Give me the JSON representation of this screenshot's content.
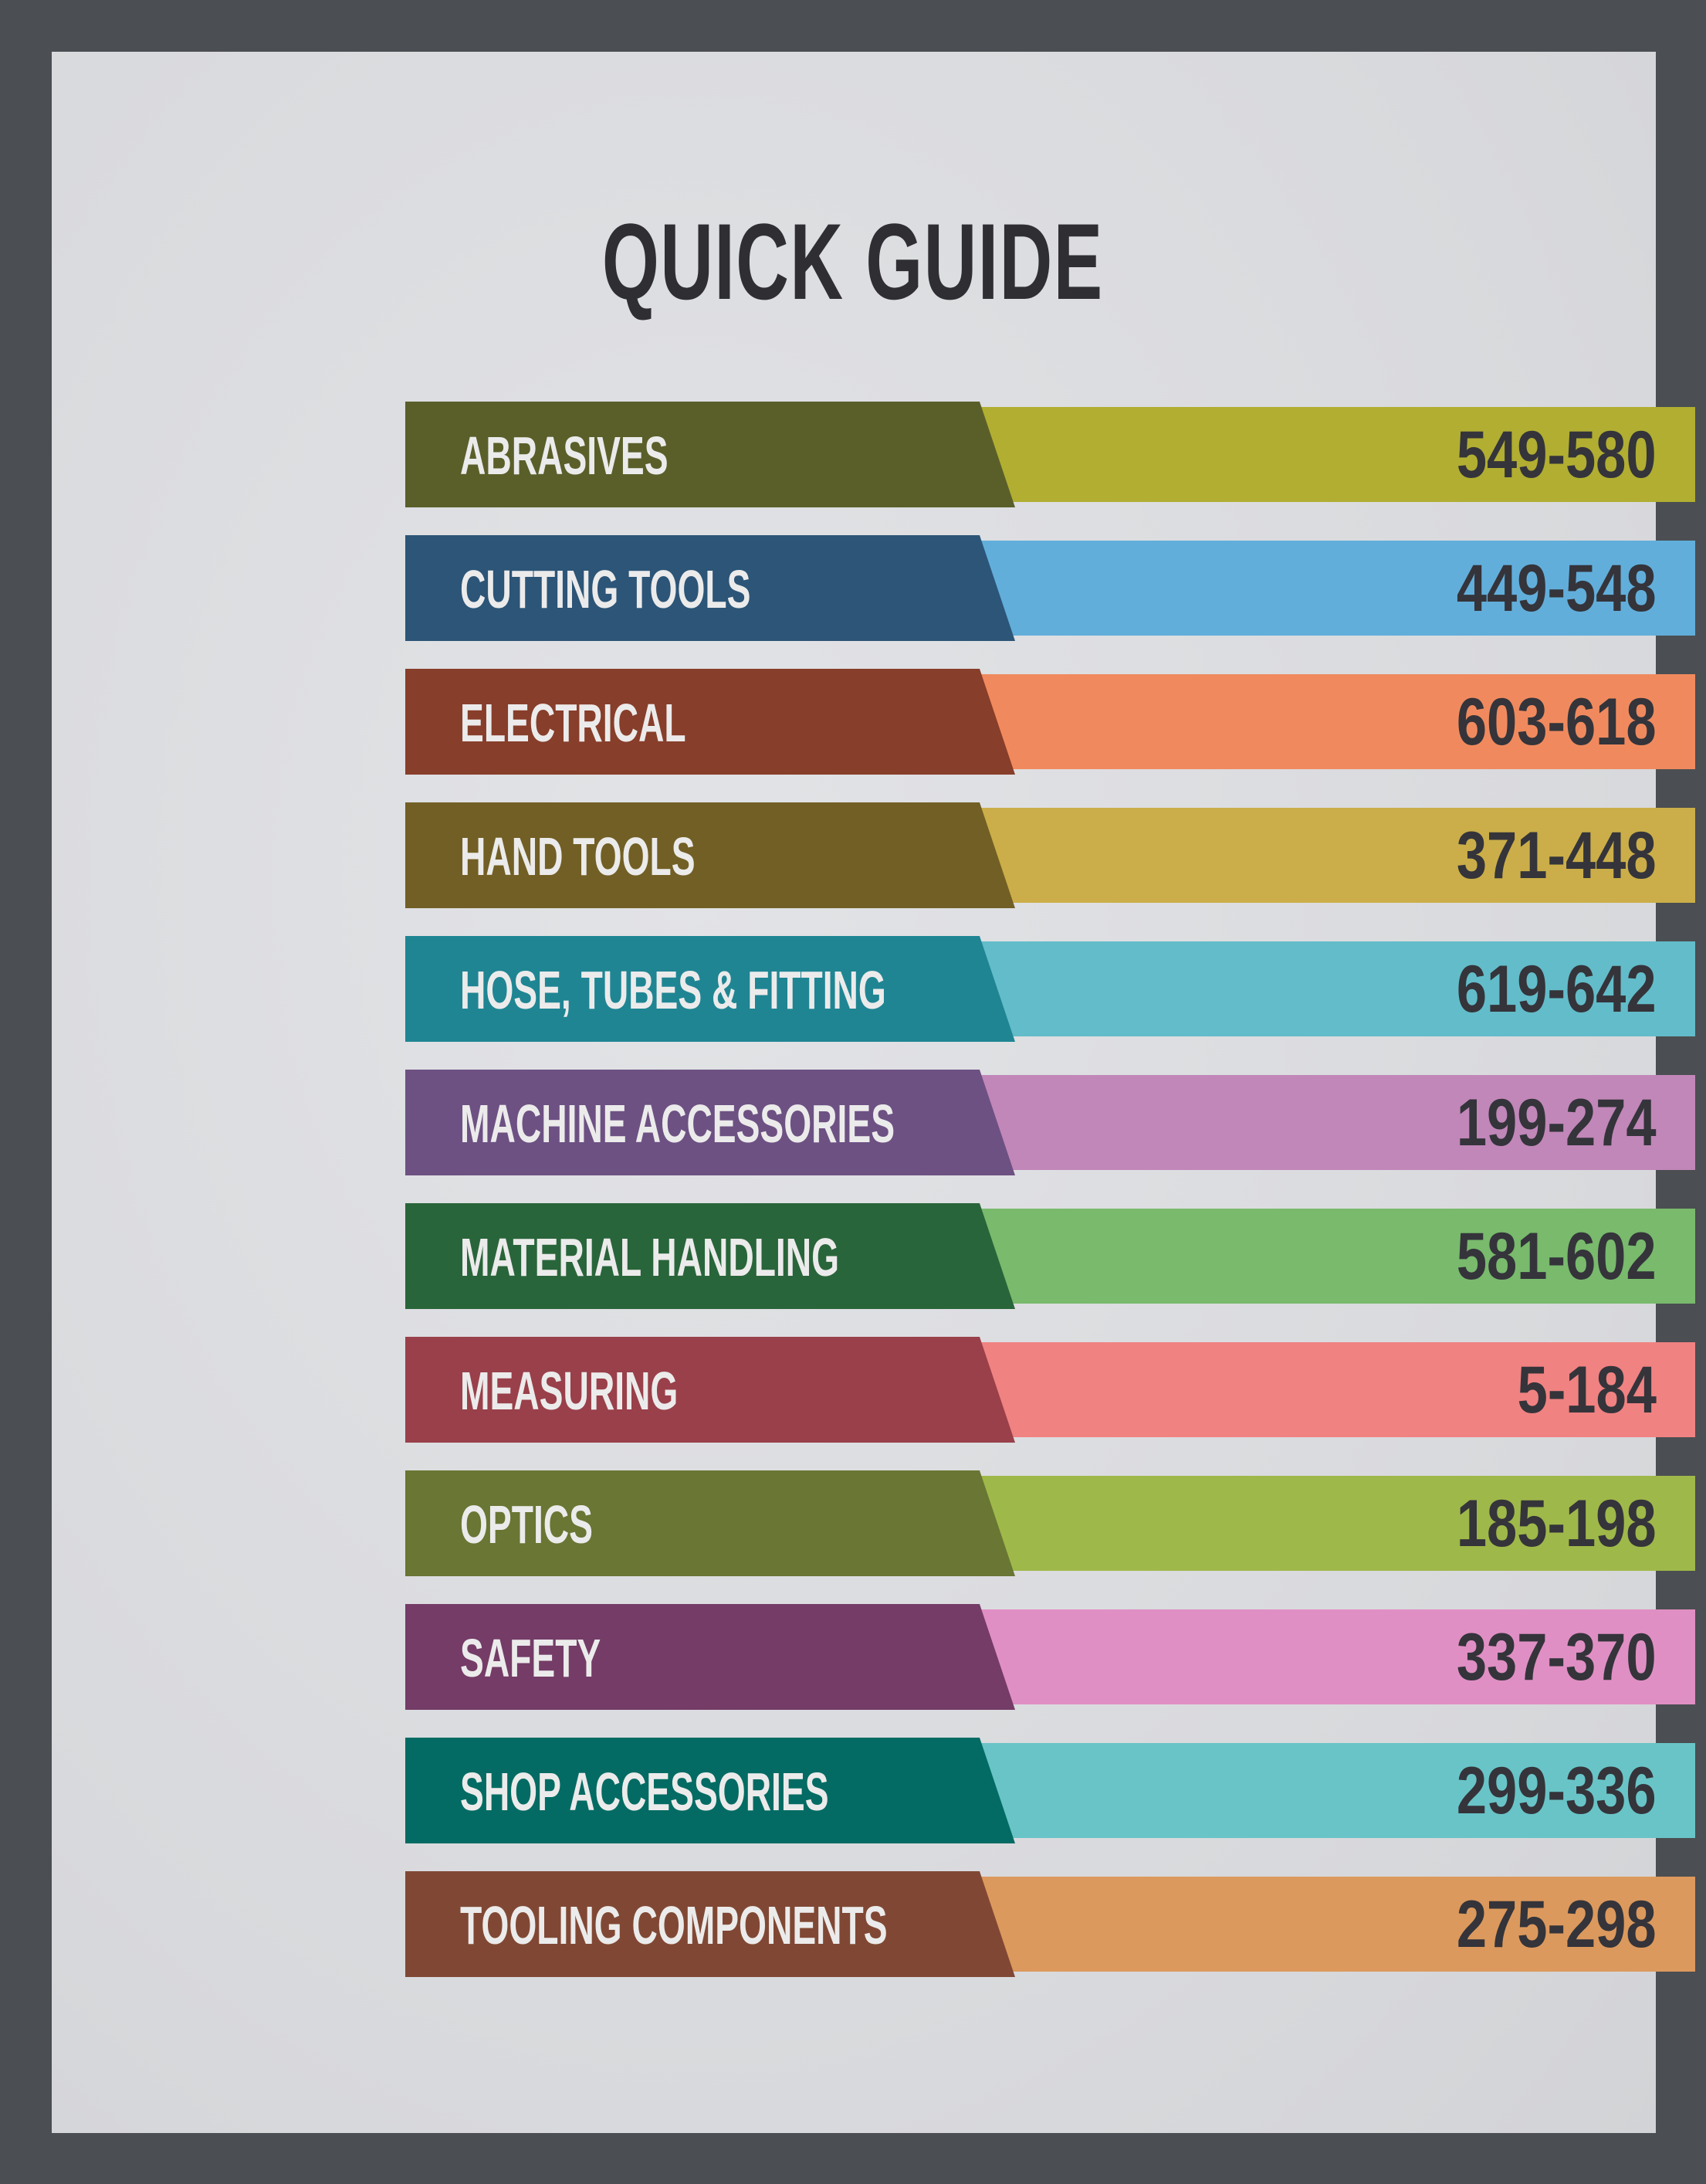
{
  "title": "QUICK GUIDE",
  "entries": [
    {
      "label": "ABRASIVES",
      "pages": "549-580",
      "label_color": "#5a5f2a",
      "range_color": "#b1ae32"
    },
    {
      "label": "CUTTING TOOLS",
      "pages": "449-548",
      "label_color": "#2c5577",
      "range_color": "#62aedb"
    },
    {
      "label": "ELECTRICAL",
      "pages": "603-618",
      "label_color": "#873e2a",
      "range_color": "#f08a5e"
    },
    {
      "label": "HAND TOOLS",
      "pages": "371-448",
      "label_color": "#725f25",
      "range_color": "#cbae49"
    },
    {
      "label": "HOSE, TUBES & FITTING",
      "pages": "619-642",
      "label_color": "#1f8593",
      "range_color": "#63bcc9"
    },
    {
      "label": "MACHINE ACCESSORIES",
      "pages": "199-274",
      "label_color": "#6d5183",
      "range_color": "#c187b9"
    },
    {
      "label": "MATERIAL HANDLING",
      "pages": "581-602",
      "label_color": "#29653a",
      "range_color": "#79ba6d"
    },
    {
      "label": "MEASURING",
      "pages": "5-184",
      "label_color": "#99404a",
      "range_color": "#f08282"
    },
    {
      "label": "OPTICS",
      "pages": "185-198",
      "label_color": "#697634",
      "range_color": "#9fb84a"
    },
    {
      "label": "SAFETY",
      "pages": "337-370",
      "label_color": "#743c67",
      "range_color": "#e08fc4"
    },
    {
      "label": "SHOP ACCESSORIES",
      "pages": "299-336",
      "label_color": "#036b63",
      "range_color": "#69c4c7"
    },
    {
      "label": "TOOLING COMPONENTS",
      "pages": "275-298",
      "label_color": "#804834",
      "range_color": "#dc995d"
    }
  ]
}
